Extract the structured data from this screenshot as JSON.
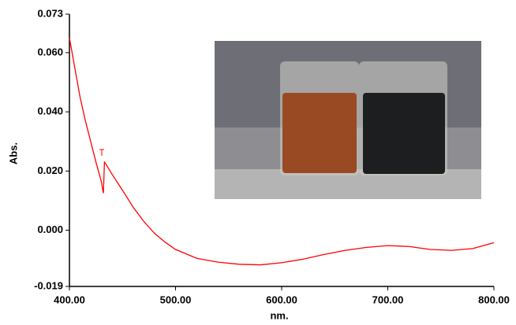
{
  "chart_data": {
    "type": "line",
    "x_label": "nm.",
    "y_label": "Abs.",
    "x": [
      400,
      405,
      410,
      415,
      420,
      425,
      430,
      432,
      433,
      435,
      440,
      450,
      460,
      470,
      480,
      490,
      500,
      520,
      540,
      560,
      580,
      600,
      620,
      640,
      660,
      680,
      700,
      720,
      740,
      760,
      780,
      800
    ],
    "series": [
      {
        "color": "#ff0000",
        "values": [
          0.065,
          0.055,
          0.045,
          0.037,
          0.03,
          0.023,
          0.0165,
          0.0125,
          0.023,
          0.022,
          0.019,
          0.0135,
          0.0078,
          0.003,
          -0.001,
          -0.004,
          -0.0065,
          -0.0095,
          -0.0108,
          -0.0115,
          -0.0117,
          -0.011,
          -0.0098,
          -0.0082,
          -0.0068,
          -0.0058,
          -0.0052,
          -0.0055,
          -0.0065,
          -0.0068,
          -0.0062,
          -0.0042
        ]
      }
    ],
    "xlim": [
      400,
      800
    ],
    "xticks": [
      {
        "value": 400,
        "label": "400.00"
      },
      {
        "value": 500,
        "label": "500.00"
      },
      {
        "value": 600,
        "label": "600.00"
      },
      {
        "value": 700,
        "label": "700.00"
      },
      {
        "value": 800,
        "label": "800.00"
      }
    ],
    "ylim": [
      -0.019,
      0.073
    ],
    "yticks": [
      {
        "value": -0.019,
        "label": "-0.019"
      },
      {
        "value": 0,
        "label": "0.000"
      },
      {
        "value": 0.02,
        "label": "0.020"
      },
      {
        "value": 0.04,
        "label": "0.040"
      },
      {
        "value": 0.06,
        "label": "0.060"
      },
      0.073
    ]
  }
}
